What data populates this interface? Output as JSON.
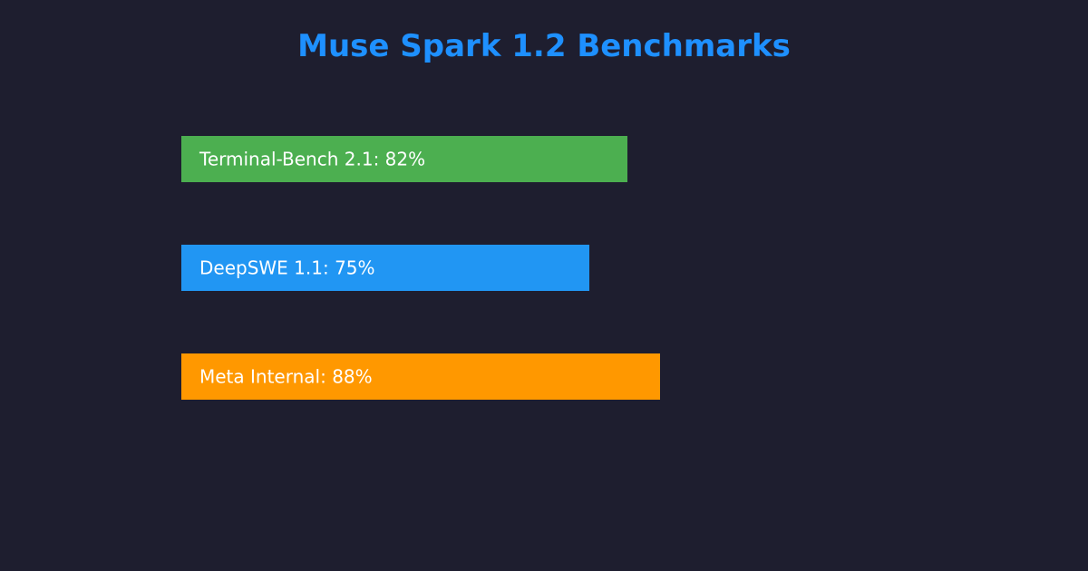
{
  "chart_data": {
    "type": "bar",
    "orientation": "horizontal",
    "title": "Muse Spark 1.2 Benchmarks",
    "categories": [
      "Terminal-Bench 2.1",
      "DeepSWE 1.1",
      "Meta Internal"
    ],
    "values": [
      82,
      75,
      88
    ],
    "data_labels": [
      "Terminal-Bench 2.1: 82%",
      "DeepSWE 1.1: 75%",
      "Meta Internal: 88%"
    ],
    "unit": "%",
    "xlim": [
      0,
      100
    ],
    "grid": false,
    "legend": "none"
  },
  "colors": {
    "background": "#1e1e2f",
    "title": "#1e90ff",
    "bars": [
      "#4caf50",
      "#2196f3",
      "#ff9800"
    ],
    "label_text": "#ffffff"
  }
}
